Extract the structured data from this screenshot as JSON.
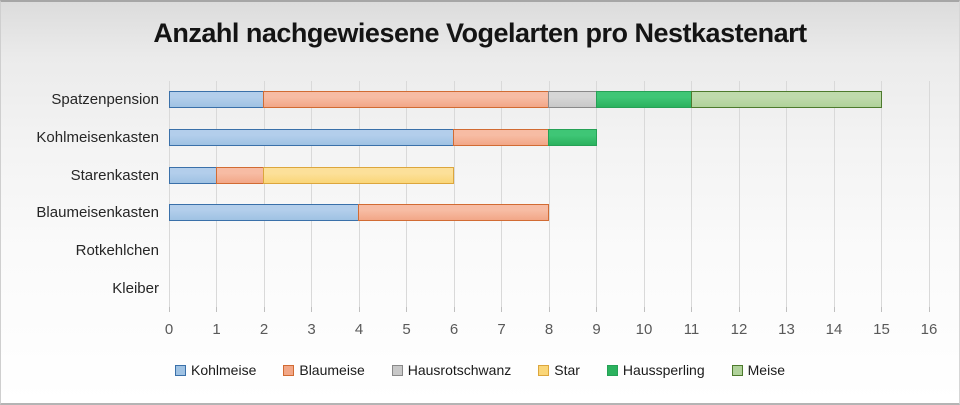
{
  "page": {
    "title": "Anzahl nachgewiesene Vogelarten pro Nestkastenart"
  },
  "chart_data": {
    "type": "bar",
    "orientation": "horizontal",
    "stacked": true,
    "title": "Anzahl nachgewiesene Vogelarten pro Nestkastenart",
    "categories": [
      "Spatzenpension",
      "Kohlmeisenkasten",
      "Starenkasten",
      "Blaumeisenkasten",
      "Rotkehlchen",
      "Kleiber"
    ],
    "series": [
      {
        "name": "Kohlmeise",
        "values": [
          2,
          6,
          1,
          4,
          0,
          0
        ],
        "fill_top": "#b3ceeb",
        "fill": "#9fc2e3",
        "border": "#3a70a9"
      },
      {
        "name": "Blaumeise",
        "values": [
          6,
          2,
          1,
          4,
          0,
          0
        ],
        "fill_top": "#f7bca4",
        "fill": "#f2a787",
        "border": "#d16b33"
      },
      {
        "name": "Hausrotschwanz",
        "values": [
          1,
          0,
          0,
          0,
          0,
          0
        ],
        "fill_top": "#d6d6d6",
        "fill": "#c8c8c8",
        "border": "#898989"
      },
      {
        "name": "Star",
        "values": [
          0,
          0,
          4,
          0,
          0,
          0
        ],
        "fill_top": "#fce09a",
        "fill": "#fad678",
        "border": "#dca63d"
      },
      {
        "name": "Haussperling",
        "values": [
          2,
          1,
          0,
          0,
          0,
          0
        ],
        "fill_top": "#3fc676",
        "fill": "#2bb25e",
        "border": "#26a156"
      },
      {
        "name": "Meise",
        "values": [
          4,
          0,
          0,
          0,
          0,
          0
        ],
        "fill_top": "#bfdaac",
        "fill": "#b0d29a",
        "border": "#4d7a2d"
      }
    ],
    "totals_per_category": [
      15,
      9,
      6,
      8,
      0,
      0
    ],
    "xlim": [
      0,
      16
    ],
    "xtick_step": 1,
    "grid": true,
    "legend_position": "bottom"
  },
  "style": {
    "gridline_color": "#d9d9d9",
    "tick_color": "#bfbfbf",
    "axis_label_color": "#595959",
    "category_label_color": "#262626"
  }
}
